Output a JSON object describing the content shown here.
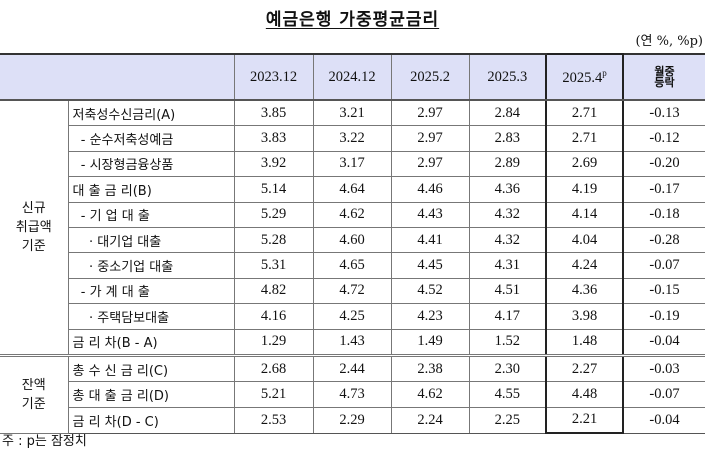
{
  "title": "예금은행 가중평균금리",
  "unit": "(연 %, %p)",
  "header": {
    "cols": [
      "2023.12",
      "2024.12",
      "2025.2",
      "2025.3"
    ],
    "latest": "2025.4",
    "latest_sup": "p",
    "change_line1": "월중",
    "change_line2": "등락"
  },
  "groups": [
    {
      "label_lines": [
        "신규",
        "취급액",
        "기준"
      ],
      "rows": [
        {
          "label": "저축성수신금리(A)",
          "values": [
            "3.85",
            "3.21",
            "2.97",
            "2.84",
            "2.71",
            "-0.13"
          ]
        },
        {
          "label": "  - 순수저축성예금",
          "values": [
            "3.83",
            "3.22",
            "2.97",
            "2.83",
            "2.71",
            "-0.12"
          ],
          "sub": true
        },
        {
          "label": "  - 시장형금융상품",
          "values": [
            "3.92",
            "3.17",
            "2.97",
            "2.89",
            "2.69",
            "-0.20"
          ],
          "sub": true
        },
        {
          "label": "대 출 금 리(B)",
          "values": [
            "5.14",
            "4.64",
            "4.46",
            "4.36",
            "4.19",
            "-0.17"
          ]
        },
        {
          "label": "  - 기 업 대 출",
          "values": [
            "5.29",
            "4.62",
            "4.43",
            "4.32",
            "4.14",
            "-0.18"
          ]
        },
        {
          "label": "    · 대기업 대출",
          "values": [
            "5.28",
            "4.60",
            "4.41",
            "4.32",
            "4.04",
            "-0.28"
          ],
          "sub": true
        },
        {
          "label": "    · 중소기업 대출",
          "values": [
            "5.31",
            "4.65",
            "4.45",
            "4.31",
            "4.24",
            "-0.07"
          ],
          "sub": true
        },
        {
          "label": "  - 가 계 대 출",
          "values": [
            "4.82",
            "4.72",
            "4.52",
            "4.51",
            "4.36",
            "-0.15"
          ],
          "sub": true
        },
        {
          "label": "    · 주택담보대출",
          "values": [
            "4.16",
            "4.25",
            "4.23",
            "4.17",
            "3.98",
            "-0.19"
          ],
          "sub": true
        },
        {
          "label": "금 리 차(B - A)",
          "values": [
            "1.29",
            "1.43",
            "1.49",
            "1.52",
            "1.48",
            "-0.04"
          ]
        }
      ]
    },
    {
      "label_lines": [
        "잔액",
        "기준"
      ],
      "rows": [
        {
          "label": "총 수 신 금 리(C)",
          "values": [
            "2.68",
            "2.44",
            "2.38",
            "2.30",
            "2.27",
            "-0.03"
          ]
        },
        {
          "label": "총 대 출 금 리(D)",
          "values": [
            "5.21",
            "4.73",
            "4.62",
            "4.55",
            "4.48",
            "-0.07"
          ],
          "sub": true
        },
        {
          "label": "금 리 차(D - C)",
          "values": [
            "2.53",
            "2.29",
            "2.24",
            "2.25",
            "2.21",
            "-0.04"
          ]
        }
      ]
    }
  ],
  "note": "주 : p는 잠정치"
}
